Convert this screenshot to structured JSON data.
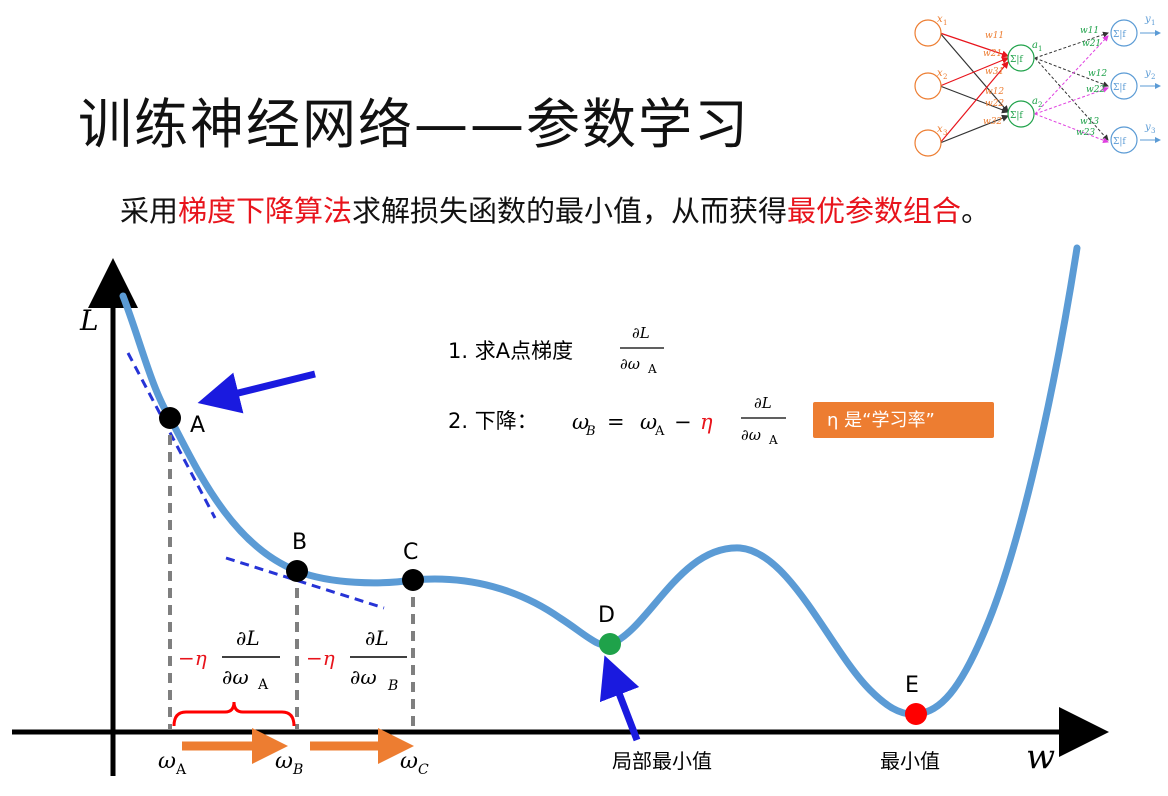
{
  "title": "训练神经网络——参数学习",
  "subtitle": {
    "p1": "采用",
    "p2": "梯度下降算法",
    "p3": "求解损失函数的最小值，从而获得",
    "p4": "最优参数组合",
    "p5": "。"
  },
  "axes": {
    "y_label": "L",
    "x_label": "w"
  },
  "points": {
    "A": "A",
    "B": "B",
    "C": "C",
    "D": "D",
    "E": "E"
  },
  "steps": {
    "step1_prefix": "1. 求A点梯度",
    "step2_prefix": "2. 下降：",
    "partial_L": "∂L",
    "d_omega": "∂ω",
    "sub_A": "A",
    "sub_B": "B",
    "omega": "ω",
    "eq": "=",
    "minus": "−",
    "eta": "η"
  },
  "lr_badge": "η 是“学习率”",
  "brace_formula": {
    "minus_eta": "−η",
    "partial_L": "∂L",
    "d_omega": "∂ω",
    "sub": "A"
  },
  "step_formula_B": {
    "minus_eta": "−η",
    "partial_L": "∂L",
    "d_omega": "∂ω",
    "sub": "B"
  },
  "x_ticks": {
    "omega": "ω",
    "sA": "A",
    "sB": "B",
    "sC": "C"
  },
  "labels": {
    "local_min": "局部最小值",
    "global_min": "最小值"
  },
  "network": {
    "inputs": [
      "x",
      "x",
      "x"
    ],
    "input_subs": [
      "1",
      "2",
      "3"
    ],
    "hidden": [
      "a",
      "a"
    ],
    "hidden_subs": [
      "1",
      "2"
    ],
    "outputs": [
      "y",
      "y",
      "y"
    ],
    "output_subs": [
      "1",
      "2",
      "3"
    ],
    "node_text": "Σ|f",
    "w_in": [
      "w11",
      "w21",
      "w31",
      "w12",
      "w22",
      "w32"
    ],
    "w_out": [
      "w11",
      "w21",
      "w12",
      "w22",
      "w13",
      "w23"
    ]
  },
  "colors": {
    "curve": "#5b9bd5",
    "arrow_blue": "#1a1adf",
    "tangent": "#2633d6",
    "red": "#e8141c",
    "orange": "#ed7d31",
    "point_D": "#1fa24a",
    "point_E": "#ff0000"
  }
}
